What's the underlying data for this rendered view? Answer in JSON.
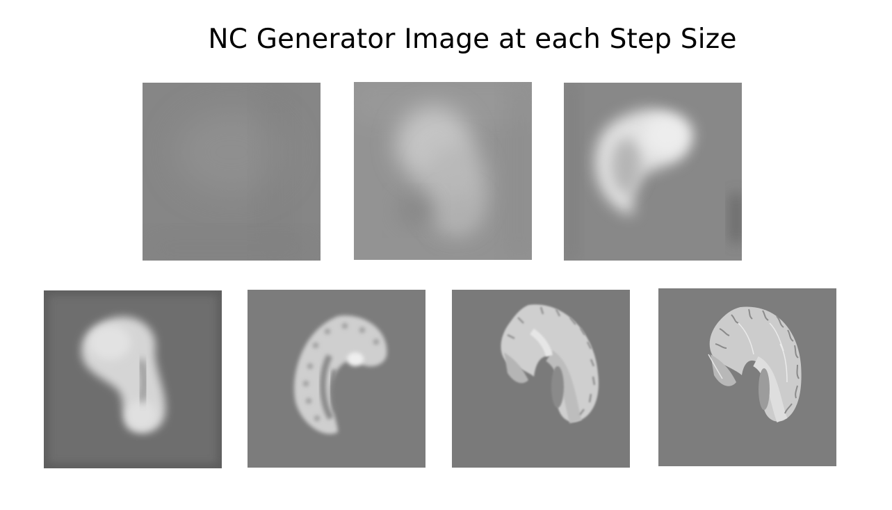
{
  "title": "NC Generator Image at each Step Size",
  "colors": {
    "background": "#ffffff",
    "title_text": "#000000"
  },
  "panels": [
    {
      "step": 1,
      "description": "nearly uniform gray noise field",
      "base_color": "#878787",
      "blur_level": "very high"
    },
    {
      "step": 2,
      "description": "faint bright blob forming",
      "base_color": "#9a9a9a",
      "blur_level": "high"
    },
    {
      "step": 3,
      "description": "curved brain-like shape emerging",
      "base_color": "#8a8a8a",
      "blur_level": "high"
    },
    {
      "step": 4,
      "description": "kidney-shaped brain outline",
      "base_color": "#6f6f6f",
      "blur_level": "medium"
    },
    {
      "step": 5,
      "description": "C-shaped brain with cortical texture",
      "base_color": "#7c7c7c",
      "blur_level": "low"
    },
    {
      "step": 6,
      "description": "sagittal brain slice with gyri",
      "base_color": "#7a7a7a",
      "blur_level": "very low"
    },
    {
      "step": 7,
      "description": "sharp sagittal brain slice",
      "base_color": "#7d7d7d",
      "blur_level": "none"
    }
  ]
}
